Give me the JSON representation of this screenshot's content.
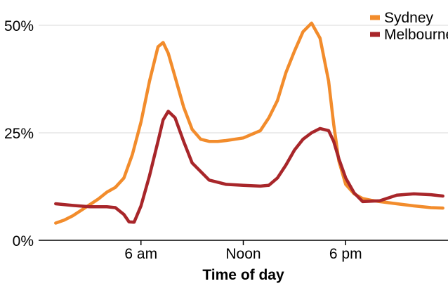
{
  "chart_data": {
    "type": "line",
    "title": "",
    "xlabel": "Time of day",
    "ylabel": "",
    "xlim": [
      0,
      24
    ],
    "ylim": [
      0,
      55
    ],
    "x_ticks": [
      {
        "value": 6,
        "label": "6 am"
      },
      {
        "value": 12,
        "label": "Noon"
      },
      {
        "value": 18,
        "label": "6 pm"
      }
    ],
    "y_ticks": [
      {
        "value": 0,
        "label": "0%"
      },
      {
        "value": 25,
        "label": "25%"
      },
      {
        "value": 50,
        "label": "50%"
      }
    ],
    "grid": {
      "horizontal": true,
      "vertical": false
    },
    "legend_position": "top-right",
    "series": [
      {
        "name": "Sydney",
        "color": "#f28c2c",
        "x": [
          1.0,
          1.5,
          2.0,
          2.5,
          3.0,
          3.5,
          4.0,
          4.5,
          5.0,
          5.5,
          6.0,
          6.5,
          7.0,
          7.3,
          7.6,
          8.0,
          8.5,
          9.0,
          9.5,
          10.0,
          10.5,
          11.0,
          12.0,
          13.0,
          13.5,
          14.0,
          14.5,
          15.0,
          15.5,
          16.0,
          16.5,
          17.0,
          17.3,
          17.6,
          18.0,
          18.5,
          19.0,
          19.5,
          20.0,
          21.0,
          22.0,
          23.0,
          23.7
        ],
        "values": [
          4.0,
          4.7,
          5.7,
          7.0,
          8.3,
          9.6,
          11.2,
          12.3,
          14.5,
          20.0,
          27.5,
          37.0,
          45.0,
          46.0,
          43.5,
          38.0,
          31.0,
          25.8,
          23.5,
          23.0,
          23.0,
          23.2,
          23.8,
          25.5,
          28.5,
          32.5,
          39.0,
          44.0,
          48.5,
          50.5,
          47.0,
          37.0,
          27.0,
          18.5,
          13.0,
          10.8,
          9.7,
          9.3,
          9.0,
          8.5,
          8.0,
          7.6,
          7.5
        ]
      },
      {
        "name": "Melbourne",
        "color": "#a8262a",
        "x": [
          1.0,
          2.0,
          3.0,
          4.0,
          4.5,
          5.0,
          5.3,
          5.6,
          6.0,
          6.5,
          7.0,
          7.3,
          7.6,
          8.0,
          8.5,
          9.0,
          10.0,
          11.0,
          12.0,
          13.0,
          13.5,
          14.0,
          14.5,
          15.0,
          15.5,
          16.0,
          16.5,
          17.0,
          17.3,
          17.6,
          18.0,
          18.5,
          19.0,
          20.0,
          21.0,
          22.0,
          23.0,
          23.7
        ],
        "values": [
          8.5,
          8.1,
          7.8,
          7.8,
          7.6,
          6.0,
          4.3,
          4.2,
          8.0,
          15.0,
          23.0,
          28.0,
          30.0,
          28.5,
          23.0,
          18.0,
          14.0,
          13.0,
          12.8,
          12.6,
          12.8,
          14.5,
          17.5,
          21.0,
          23.5,
          25.0,
          26.0,
          25.5,
          23.0,
          19.0,
          14.5,
          11.0,
          9.0,
          9.2,
          10.5,
          10.8,
          10.6,
          10.3
        ]
      }
    ]
  }
}
